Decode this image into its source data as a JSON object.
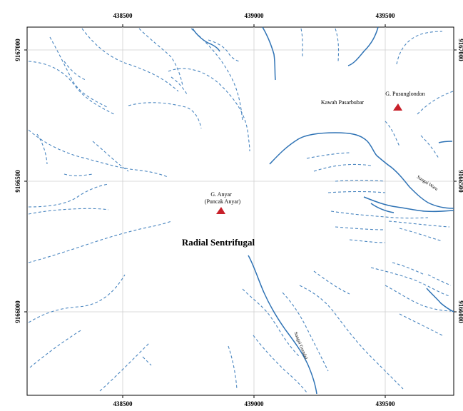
{
  "map": {
    "x_ticks": [
      "438500",
      "439000",
      "439500"
    ],
    "y_ticks": [
      "9167000",
      "9166500",
      "9166000"
    ],
    "summit_name": "G. Anyar",
    "summit_alt_name": "(Puncak Anyar)",
    "peak_name": "G. Pusunglondon",
    "crater_name": "Kawah Pasarbubar",
    "pattern_title": "Radial Sentrifugal",
    "river_waru": "Sungai Waru",
    "river_grendol": "Sungai Grendol",
    "colors": {
      "stream": "#4a86c0",
      "river": "#2f73b5",
      "peak_marker": "#c8202a",
      "grid": "#cfcfcf"
    }
  }
}
